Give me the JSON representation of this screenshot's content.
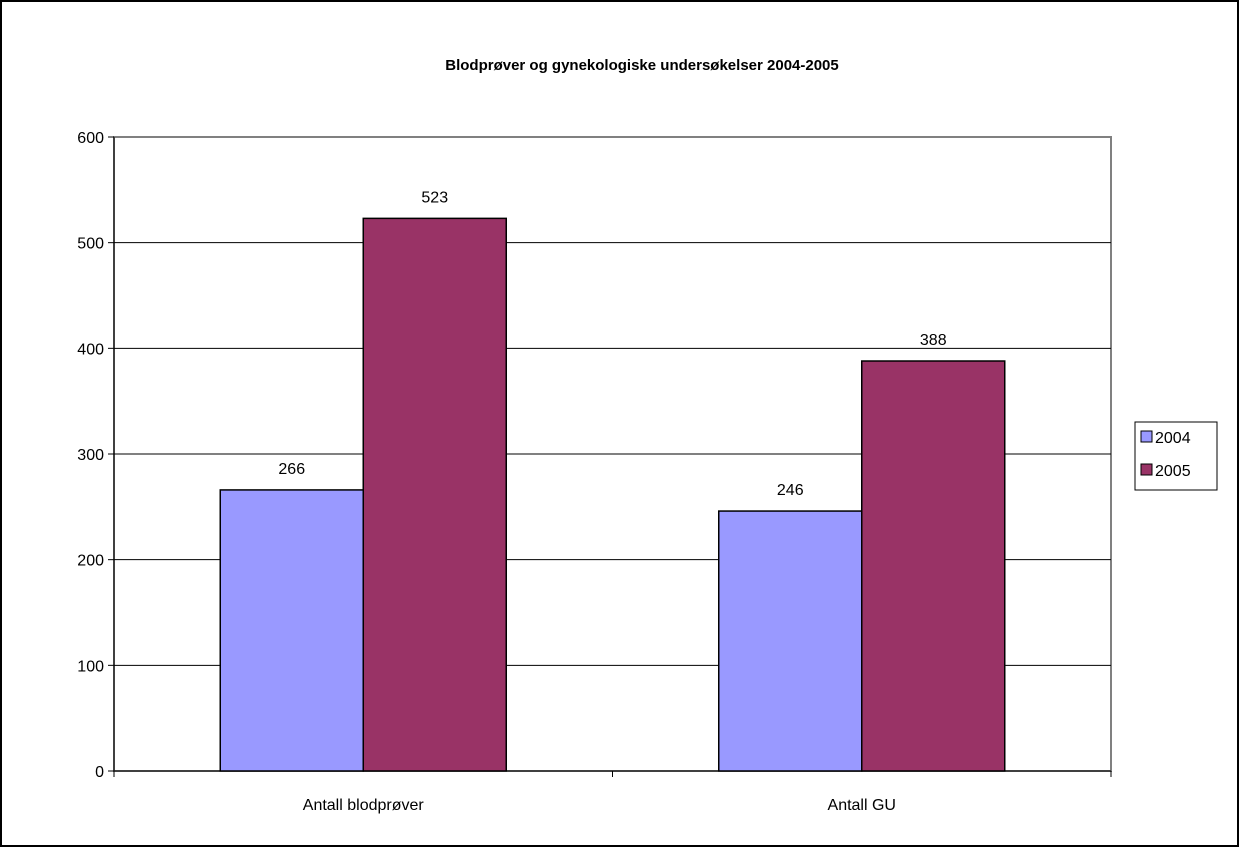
{
  "chart_data": {
    "type": "bar",
    "title": "Blodprøver og gynekologiske undersøkelser 2004-2005",
    "categories": [
      "Antall blodprøver",
      "Antall GU"
    ],
    "series": [
      {
        "name": "2004",
        "values": [
          266,
          246
        ],
        "color": "#9999ff"
      },
      {
        "name": "2005",
        "values": [
          523,
          388
        ],
        "color": "#993366"
      }
    ],
    "yticks": [
      "0",
      "100",
      "200",
      "300",
      "400",
      "500",
      "600"
    ],
    "ylim": [
      0,
      600
    ],
    "grid": true,
    "legend_position": "right",
    "plot_background": "#ffffff",
    "plot_border_color": "#808080",
    "gridline_color": "#000000"
  }
}
